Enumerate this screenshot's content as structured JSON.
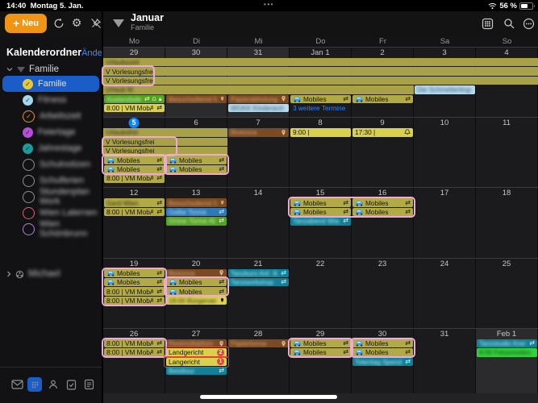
{
  "status_bar": {
    "time": "14:40",
    "date": "Montag 5. Jan.",
    "battery_percent": "56 %",
    "dots": "•••"
  },
  "toolbar": {
    "new_label": "Neu",
    "plus_glyph": "+"
  },
  "header": {
    "month": "Januar",
    "calendar": "Familie"
  },
  "sidebar": {
    "title": "Kalenderordner",
    "edit_label": "Ändern",
    "group": {
      "label": "Familie"
    },
    "items": [
      {
        "label": "Familie",
        "color": "#e5c93d",
        "checked": true,
        "selected": true,
        "blur": false
      },
      {
        "label": "Fitness",
        "color": "#a5d8f0",
        "checked": true,
        "blur": true
      },
      {
        "label": "Arbeitszeit",
        "color": "#e8962e",
        "checked": true,
        "ring": true,
        "blur": true
      },
      {
        "label": "Feiertage",
        "color": "#b44fd8",
        "checked": true,
        "blur": true
      },
      {
        "label": "Jahrestage",
        "color": "#1f9a9a",
        "checked": true,
        "blur": true
      },
      {
        "label": "Schulnotizen",
        "ring_color": "#8e8e93",
        "checked": false,
        "blur": true
      },
      {
        "label": "Schulferien",
        "ring_color": "#8e8e93",
        "checked": false,
        "blur": true
      },
      {
        "label": "Stundenplan Work",
        "ring_color": "#8e8e93",
        "checked": false,
        "blur": true
      },
      {
        "label": "Wien Laternen",
        "ring_color": "#e35d6a",
        "checked": false,
        "blur": true
      },
      {
        "label": "Wien Schönbrunn",
        "ring_color": "#b07fd8",
        "checked": false,
        "blur": true
      }
    ],
    "group2": {
      "label": "Michael",
      "blur": true
    },
    "tabs": [
      "mail",
      "calendar",
      "contacts",
      "tasks",
      "notes"
    ],
    "active_tab": "calendar"
  },
  "calendar": {
    "weekdays": [
      "Mo",
      "Di",
      "Mi",
      "Do",
      "Fr",
      "Sa",
      "So"
    ],
    "rows": [
      {
        "cells": [
          {
            "d": "29",
            "other": true
          },
          {
            "d": "30",
            "other": true
          },
          {
            "d": "31",
            "other": true
          },
          {
            "d": "Jan 1"
          },
          {
            "d": "2"
          },
          {
            "d": "3"
          },
          {
            "d": "4"
          }
        ],
        "events": [
          {
            "col": 0,
            "span": 7,
            "slot": 0,
            "color": "allday",
            "label": "Urlaubszeit",
            "blur": true
          },
          {
            "col": 0,
            "span": 7,
            "slot": 1,
            "color": "allday",
            "label": "V Vorlesungsfrei"
          },
          {
            "col": 0,
            "span": 7,
            "slot": 2,
            "color": "allday",
            "label": "V Vorlesungsfrei"
          },
          {
            "col": 0,
            "span": 5,
            "slot": 3,
            "color": "allday",
            "label": "Urlaub M.",
            "blur": true
          },
          {
            "col": 5,
            "span": 1,
            "slot": 3,
            "color": "lightblue",
            "label": "Die Schmetterlingskind",
            "blur": true
          },
          {
            "col": 0,
            "span": 1,
            "slot": 4,
            "color": "green",
            "label": "Auslandsdienst",
            "blur": true,
            "icons": [
              "repeat",
              "bell",
              "lock"
            ]
          },
          {
            "col": 1,
            "span": 1,
            "slot": 4,
            "color": "brown",
            "label": "Besuchsdienst Mama",
            "blur": true,
            "icons": [
              "pin"
            ]
          },
          {
            "col": 2,
            "span": 1,
            "slot": 4,
            "color": "brown",
            "label": "Papierabholung",
            "blur": true,
            "icons": [
              "pin"
            ]
          },
          {
            "col": 3,
            "span": 1,
            "slot": 4,
            "color": "olive",
            "label": "Mobiles",
            "car": true,
            "icons": [
              "repeat"
            ]
          },
          {
            "col": 4,
            "span": 1,
            "slot": 4,
            "color": "olive",
            "label": "Mobiles",
            "car": true,
            "icons": [
              "repeat"
            ]
          },
          {
            "col": 0,
            "span": 1,
            "slot": 5,
            "color": "bright",
            "label": "8:00 | VM MobA;",
            "icons": [
              "repeat"
            ]
          },
          {
            "col": 2,
            "span": 1,
            "slot": 5,
            "color": "lightblue",
            "label": "WGKK Kinderarzt",
            "blur": true
          },
          {
            "col": 3,
            "span": 1,
            "slot": 5,
            "color": "more",
            "label": "3 weitere Termine"
          }
        ],
        "annotations": [
          {
            "col": 0,
            "span": 0.8,
            "s0": 1,
            "s1": 2,
            "kind": "pink"
          }
        ]
      },
      {
        "cells": [
          {
            "d": "5",
            "today": true
          },
          {
            "d": "6"
          },
          {
            "d": "7"
          },
          {
            "d": "8"
          },
          {
            "d": "9"
          },
          {
            "d": "10"
          },
          {
            "d": "11"
          }
        ],
        "events": [
          {
            "col": 0,
            "span": 2,
            "slot": 0,
            "color": "allday",
            "label": "Urlaubsfrei",
            "blur": true
          },
          {
            "col": 2,
            "span": 1,
            "slot": 0,
            "color": "brown",
            "label": "Biotonne",
            "blur": true,
            "icons": [
              "pin"
            ]
          },
          {
            "col": 3,
            "span": 1,
            "slot": 0,
            "color": "bright",
            "label": "9:00 |"
          },
          {
            "col": 4,
            "span": 1,
            "slot": 0,
            "color": "bright",
            "label": "17:30 |",
            "icons": [
              "bell"
            ]
          },
          {
            "col": 0,
            "span": 2,
            "slot": 1,
            "color": "allday",
            "label": "V Vorlesungsfrei"
          },
          {
            "col": 0,
            "span": 2,
            "slot": 2,
            "color": "allday",
            "label": "V Vorlesungsfrei"
          },
          {
            "col": 0,
            "span": 1,
            "slot": 3,
            "color": "olive",
            "label": "Mobiles",
            "car": true,
            "icons": [
              "repeat"
            ]
          },
          {
            "col": 0,
            "span": 1,
            "slot": 4,
            "color": "olive",
            "label": "Mobiles",
            "car": true,
            "icons": [
              "repeat"
            ]
          },
          {
            "col": 1,
            "span": 1,
            "slot": 3,
            "color": "olive",
            "label": "Mobiles",
            "car": true,
            "icons": [
              "repeat"
            ]
          },
          {
            "col": 1,
            "span": 1,
            "slot": 4,
            "color": "olive",
            "label": "Mobiles",
            "car": true,
            "icons": [
              "repeat"
            ]
          },
          {
            "col": 0,
            "span": 1,
            "slot": 5,
            "color": "olive",
            "label": "8:00 | VM MobA;",
            "icons": [
              "repeat"
            ]
          }
        ],
        "annotations": [
          {
            "col": 0,
            "span": 1.17,
            "s0": 1,
            "s1": 2,
            "kind": "pink"
          },
          {
            "col": 0,
            "span": 1,
            "s0": 3,
            "s1": 4,
            "kind": "pink"
          },
          {
            "col": 1,
            "span": 1,
            "s0": 3,
            "s1": 4,
            "kind": "pink"
          }
        ]
      },
      {
        "cells": [
          {
            "d": "12"
          },
          {
            "d": "13"
          },
          {
            "d": "14"
          },
          {
            "d": "15"
          },
          {
            "d": "16"
          },
          {
            "d": "17"
          },
          {
            "d": "18"
          }
        ],
        "events": [
          {
            "col": 0,
            "span": 1,
            "slot": 0,
            "color": "olive",
            "label": "Gerd Wien",
            "blur": true,
            "icons": [
              "repeat"
            ]
          },
          {
            "col": 0,
            "span": 1,
            "slot": 1,
            "color": "olive",
            "label": "8:00 | VM MobA;",
            "icons": [
              "repeat"
            ]
          },
          {
            "col": 1,
            "span": 1,
            "slot": 0,
            "color": "brown",
            "label": "Besuchsdienst Mama",
            "blur": true,
            "icons": [
              "pin"
            ]
          },
          {
            "col": 1,
            "span": 1,
            "slot": 1,
            "color": "blue",
            "label": "Gelbe Tonne",
            "blur": true,
            "icons": [
              "repeat"
            ]
          },
          {
            "col": 1,
            "span": 1,
            "slot": 2,
            "color": "green",
            "label": "Grüne Tonne Abfuhr",
            "blur": true,
            "icons": [
              "repeat"
            ]
          },
          {
            "col": 3,
            "span": 1,
            "slot": 0,
            "color": "olive",
            "label": "Mobiles",
            "car": true,
            "icons": [
              "repeat"
            ]
          },
          {
            "col": 3,
            "span": 1,
            "slot": 1,
            "color": "olive",
            "label": "Mobiles",
            "car": true,
            "icons": [
              "repeat"
            ]
          },
          {
            "col": 4,
            "span": 1,
            "slot": 0,
            "color": "olive",
            "label": "Mobiles",
            "car": true,
            "icons": [
              "repeat"
            ]
          },
          {
            "col": 4,
            "span": 1,
            "slot": 1,
            "color": "olive",
            "label": "Mobiles",
            "car": true,
            "icons": [
              "repeat"
            ]
          },
          {
            "col": 3,
            "span": 1,
            "slot": 2,
            "color": "teal",
            "label": "Tanzabend Wien",
            "blur": true,
            "icons": [
              "repeat"
            ]
          }
        ],
        "annotations": [
          {
            "col": 3,
            "span": 2,
            "s0": 0,
            "s1": 1,
            "kind": "pink"
          }
        ]
      },
      {
        "cells": [
          {
            "d": "19"
          },
          {
            "d": "20"
          },
          {
            "d": "21"
          },
          {
            "d": "22"
          },
          {
            "d": "23"
          },
          {
            "d": "24"
          },
          {
            "d": "25"
          }
        ],
        "events": [
          {
            "col": 0,
            "span": 1,
            "slot": 0,
            "color": "olive",
            "label": "Mobiles",
            "car": true,
            "icons": [
              "repeat"
            ]
          },
          {
            "col": 0,
            "span": 1,
            "slot": 1,
            "color": "olive",
            "label": "Mobiles",
            "car": true,
            "icons": [
              "repeat"
            ]
          },
          {
            "col": 0,
            "span": 1,
            "slot": 2,
            "color": "olive",
            "label": "8:00 | VM MobA;",
            "icons": [
              "repeat"
            ]
          },
          {
            "col": 0,
            "span": 1,
            "slot": 3,
            "color": "olive",
            "label": "8:00 | VM MobA;",
            "icons": [
              "repeat"
            ]
          },
          {
            "col": 1,
            "span": 1,
            "slot": 0,
            "color": "brown",
            "label": "Biotonne",
            "blur": true,
            "icons": [
              "pin"
            ]
          },
          {
            "col": 1,
            "span": 1,
            "slot": 1,
            "color": "olive",
            "label": "Mobiles",
            "car": true,
            "icons": [
              "repeat"
            ]
          },
          {
            "col": 1,
            "span": 1,
            "slot": 2,
            "color": "olive",
            "label": "Mobiles",
            "car": true,
            "icons": [
              "repeat"
            ]
          },
          {
            "col": 1,
            "span": 1,
            "slot": 3,
            "color": "bright",
            "label": "18:00 Bürgerversamml",
            "blur": true,
            "icons": [
              "pin"
            ]
          },
          {
            "col": 2,
            "span": 1,
            "slot": 0,
            "color": "teal",
            "label": "Tanzkurs Anf. Wien",
            "blur": true,
            "icons": [
              "repeat"
            ]
          },
          {
            "col": 2,
            "span": 1,
            "slot": 1,
            "color": "teal",
            "label": "Tanzworkshop",
            "blur": true,
            "icons": [
              "repeat"
            ]
          }
        ],
        "annotations": [
          {
            "col": 0,
            "span": 1,
            "s0": 0,
            "s1": 3,
            "kind": "pink"
          },
          {
            "col": 1,
            "span": 1,
            "s0": 1,
            "s1": 2,
            "kind": "pink"
          }
        ]
      },
      {
        "cells": [
          {
            "d": "26"
          },
          {
            "d": "27"
          },
          {
            "d": "28"
          },
          {
            "d": "29"
          },
          {
            "d": "30"
          },
          {
            "d": "31"
          },
          {
            "d": "Feb 1",
            "other": true
          }
        ],
        "events": [
          {
            "col": 0,
            "span": 1,
            "slot": 0,
            "color": "olive",
            "label": "8:00 | VM MobA;",
            "icons": [
              "repeat"
            ]
          },
          {
            "col": 0,
            "span": 1,
            "slot": 1,
            "color": "olive",
            "label": "8:00 | VM MobA;",
            "icons": [
              "repeat"
            ]
          },
          {
            "col": 1,
            "span": 1,
            "slot": 0,
            "color": "brown",
            "label": "Restmüllabfuhr",
            "blur": true,
            "icons": [
              "pin"
            ]
          },
          {
            "col": 1,
            "span": 1,
            "slot": 1,
            "color": "bright",
            "label": "Landgericht",
            "badge": "2"
          },
          {
            "col": 1,
            "span": 1,
            "slot": 2,
            "color": "bright",
            "label": "Langericht",
            "badge": "1"
          },
          {
            "col": 1,
            "span": 1,
            "slot": 3,
            "color": "teal",
            "label": "Beisltour",
            "blur": true,
            "icons": [
              "repeat"
            ]
          },
          {
            "col": 2,
            "span": 1,
            "slot": 0,
            "color": "brown",
            "label": "Papiertonne",
            "blur": true,
            "icons": [
              "pin"
            ]
          },
          {
            "col": 3,
            "span": 1,
            "slot": 0,
            "color": "olive",
            "label": "Mobiles",
            "car": true,
            "icons": [
              "repeat"
            ]
          },
          {
            "col": 3,
            "span": 1,
            "slot": 1,
            "color": "olive",
            "label": "Mobiles",
            "car": true,
            "icons": [
              "repeat"
            ]
          },
          {
            "col": 4,
            "span": 1,
            "slot": 0,
            "color": "olive",
            "label": "Mobiles",
            "car": true,
            "icons": [
              "repeat"
            ]
          },
          {
            "col": 4,
            "span": 1,
            "slot": 1,
            "color": "olive",
            "label": "Mobiles",
            "car": true,
            "icons": [
              "repeat"
            ]
          },
          {
            "col": 4,
            "span": 1,
            "slot": 2,
            "color": "teal",
            "label": "Totentag Spendi",
            "blur": true,
            "icons": [
              "repeat"
            ]
          },
          {
            "col": 6,
            "span": 1,
            "slot": 0,
            "color": "teal",
            "label": "Tanzstudio Krems",
            "blur": true,
            "icons": [
              "repeat"
            ]
          },
          {
            "col": 6,
            "span": 1,
            "slot": 1,
            "color": "neon",
            "label": "8:00 Felsenreiten",
            "blur": true
          }
        ],
        "annotations": [
          {
            "col": 0,
            "span": 1,
            "s0": 0,
            "s1": 1,
            "kind": "pink"
          },
          {
            "col": 1,
            "span": 1,
            "s0": 1,
            "s1": 1,
            "kind": "red"
          },
          {
            "col": 1,
            "span": 1,
            "s0": 2,
            "s1": 2,
            "kind": "red"
          },
          {
            "col": 3,
            "span": 1,
            "s0": 0,
            "s1": 1,
            "kind": "pink"
          },
          {
            "col": 4,
            "span": 1,
            "s0": 0,
            "s1": 1,
            "kind": "pink"
          }
        ]
      }
    ]
  },
  "colors": {
    "accent_blue": "#0a84ff",
    "selection_blue": "#1a5dc8",
    "new_button_orange": "#ef9414",
    "event_olive": "#b2aa46",
    "event_bright_yellow": "#d9d14d",
    "event_allday": "#a9a148",
    "event_brown": "#7c4a22",
    "event_blue": "#2c7ab8",
    "event_green": "#51a321",
    "event_neon_green": "#35d13c",
    "event_teal": "#0f8198",
    "event_lightblue": "#b9d9ec",
    "annotation_pink": "#efa8d8",
    "annotation_red": "#e8432f",
    "link_blue": "#2e86ff"
  }
}
